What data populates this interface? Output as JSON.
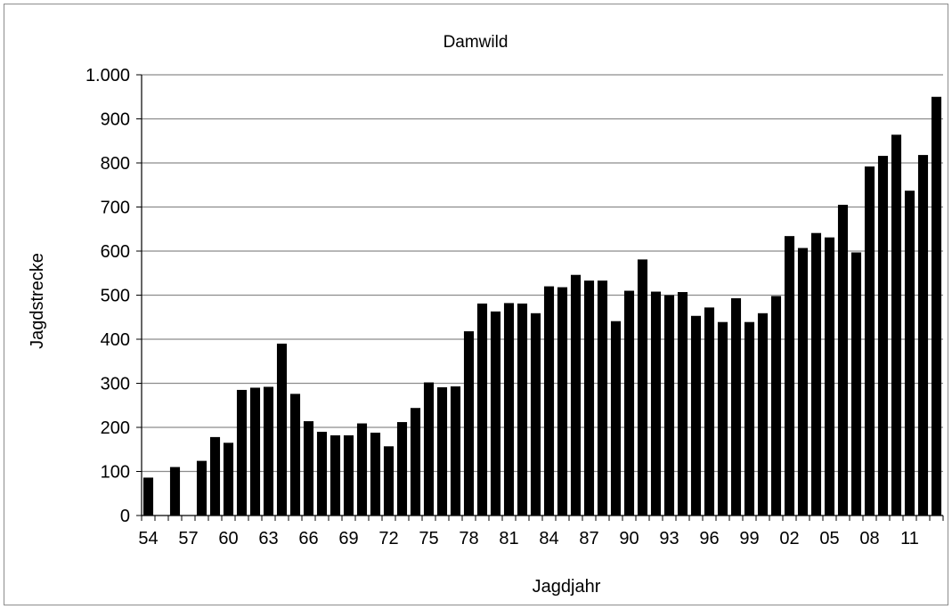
{
  "chart_data": {
    "type": "bar",
    "title": "Damwild",
    "xlabel": "Jagdjahr",
    "ylabel": "Jagdstrecke",
    "ylim": [
      0,
      1000
    ],
    "yticks": [
      0,
      100,
      200,
      300,
      400,
      500,
      600,
      700,
      800,
      900,
      1000
    ],
    "ytick_labels": [
      "0",
      "100",
      "200",
      "300",
      "400",
      "500",
      "600",
      "700",
      "800",
      "900",
      "1.000"
    ],
    "xtick_labels": [
      "54",
      "57",
      "60",
      "63",
      "66",
      "69",
      "72",
      "75",
      "78",
      "81",
      "84",
      "87",
      "90",
      "93",
      "96",
      "99",
      "02",
      "05",
      "08",
      "11"
    ],
    "grid": true,
    "legend": "none",
    "bar_color": "#000000",
    "categories": [
      "54",
      "55",
      "56",
      "57",
      "58",
      "59",
      "60",
      "61",
      "62",
      "63",
      "64",
      "65",
      "66",
      "67",
      "68",
      "69",
      "70",
      "71",
      "72",
      "73",
      "74",
      "75",
      "76",
      "77",
      "78",
      "79",
      "80",
      "81",
      "82",
      "83",
      "84",
      "85",
      "86",
      "87",
      "88",
      "89",
      "90",
      "91",
      "92",
      "93",
      "94",
      "95",
      "96",
      "97",
      "98",
      "99",
      "00",
      "01",
      "02",
      "03",
      "04",
      "05",
      "06",
      "07",
      "08",
      "09",
      "10",
      "11",
      "12",
      "13"
    ],
    "values": [
      86,
      0,
      110,
      0,
      124,
      178,
      165,
      285,
      290,
      292,
      390,
      276,
      214,
      190,
      182,
      182,
      209,
      188,
      157,
      212,
      244,
      302,
      291,
      293,
      418,
      481,
      463,
      482,
      481,
      459,
      520,
      518,
      546,
      533,
      533,
      441,
      510,
      581,
      508,
      500,
      507,
      453,
      472,
      439,
      493,
      439,
      459,
      498,
      634,
      607,
      641,
      631,
      705,
      597,
      792,
      816,
      864,
      737,
      818,
      950
    ]
  }
}
